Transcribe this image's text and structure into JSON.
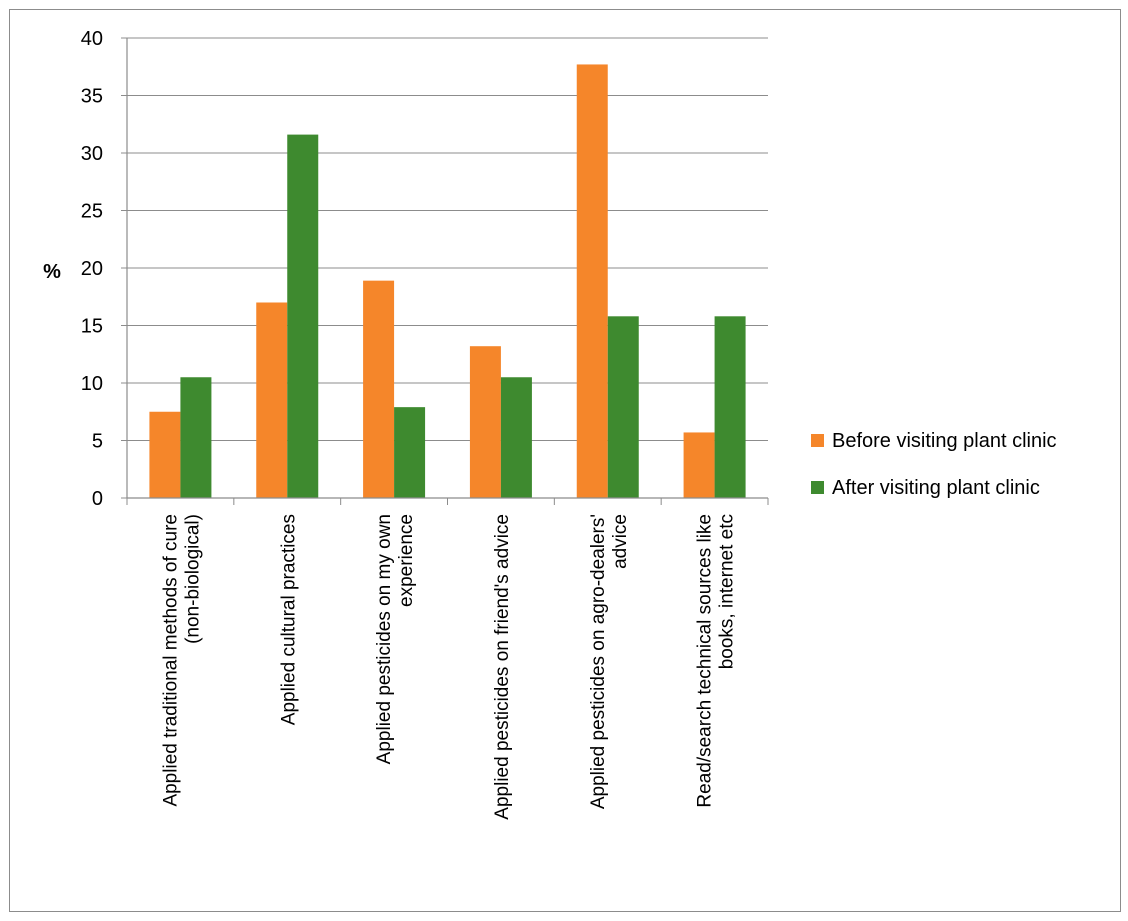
{
  "chart_data": {
    "type": "bar",
    "ylabel": "%",
    "ylim": [
      0,
      40
    ],
    "yticks": [
      "0",
      "5",
      "10",
      "15",
      "20",
      "25",
      "30",
      "35",
      "40"
    ],
    "grid": true,
    "legend_position": "right",
    "categories": [
      [
        "Applied traditional methods of cure",
        "(non-biological)"
      ],
      [
        "Applied cultural practices"
      ],
      [
        "Applied pesticides on my own",
        "experience"
      ],
      [
        "Applied pesticides on friend's advice"
      ],
      [
        "Applied pesticides on agro-dealers'",
        "advice"
      ],
      [
        "Read/search technical sources like",
        "books, internet etc"
      ]
    ],
    "series": [
      {
        "name": "Before visiting plant clinic",
        "color": "#f5862a",
        "values": [
          7.5,
          17.0,
          18.9,
          13.2,
          37.7,
          5.7
        ]
      },
      {
        "name": "After visiting plant clinic",
        "color": "#3e8a2f",
        "values": [
          10.5,
          31.6,
          7.9,
          10.5,
          15.8,
          15.8
        ]
      }
    ]
  }
}
